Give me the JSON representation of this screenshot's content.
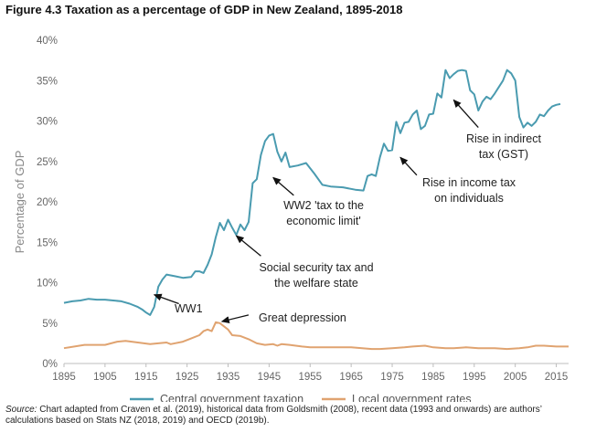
{
  "title": "Figure 4.3 Taxation as a percentage of GDP in New Zealand, 1895-2018",
  "source": {
    "label": "Source:",
    "text": " Chart adapted from Craven et al. (2019), historical data from Goldsmith (2008), recent data (1993 and onwards) are authors’ calculations based on Stats NZ (2018, 2019) and OECD (2019b)."
  },
  "chart_data": {
    "type": "line",
    "title": "Figure 4.3 Taxation as a percentage of GDP in New Zealand, 1895-2018",
    "xlabel": "",
    "ylabel": "Percentage of GDP",
    "xlim": [
      1895,
      2018
    ],
    "ylim": [
      0,
      40
    ],
    "x_ticks": [
      1895,
      1905,
      1915,
      1925,
      1935,
      1945,
      1955,
      1965,
      1975,
      1985,
      1995,
      2005,
      2015
    ],
    "y_ticks": [
      0,
      5,
      10,
      15,
      20,
      25,
      30,
      35,
      40
    ],
    "y_tick_labels": [
      "0%",
      "5%",
      "10%",
      "15%",
      "20%",
      "25%",
      "30%",
      "35%",
      "40%"
    ],
    "grid": false,
    "legend_position": "bottom",
    "series": [
      {
        "name": "Central government taxation",
        "color": "#4a9bb0",
        "points": [
          [
            1895,
            7.5
          ],
          [
            1897,
            7.7
          ],
          [
            1899,
            7.8
          ],
          [
            1901,
            8.0
          ],
          [
            1903,
            7.9
          ],
          [
            1905,
            7.9
          ],
          [
            1907,
            7.8
          ],
          [
            1909,
            7.7
          ],
          [
            1911,
            7.4
          ],
          [
            1913,
            7.0
          ],
          [
            1914,
            6.7
          ],
          [
            1915,
            6.3
          ],
          [
            1916,
            6.0
          ],
          [
            1917,
            7.0
          ],
          [
            1918,
            9.5
          ],
          [
            1919,
            10.4
          ],
          [
            1920,
            11.0
          ],
          [
            1922,
            10.8
          ],
          [
            1924,
            10.6
          ],
          [
            1926,
            10.7
          ],
          [
            1927,
            11.4
          ],
          [
            1928,
            11.4
          ],
          [
            1929,
            11.2
          ],
          [
            1930,
            12.2
          ],
          [
            1931,
            13.5
          ],
          [
            1932,
            15.6
          ],
          [
            1933,
            17.4
          ],
          [
            1934,
            16.5
          ],
          [
            1935,
            17.8
          ],
          [
            1936,
            16.8
          ],
          [
            1937,
            15.9
          ],
          [
            1938,
            17.2
          ],
          [
            1939,
            16.5
          ],
          [
            1940,
            17.5
          ],
          [
            1941,
            22.3
          ],
          [
            1942,
            22.8
          ],
          [
            1943,
            25.8
          ],
          [
            1944,
            27.5
          ],
          [
            1945,
            28.2
          ],
          [
            1946,
            28.4
          ],
          [
            1947,
            26.2
          ],
          [
            1948,
            25.0
          ],
          [
            1949,
            26.1
          ],
          [
            1950,
            24.3
          ],
          [
            1952,
            24.5
          ],
          [
            1954,
            24.8
          ],
          [
            1956,
            23.5
          ],
          [
            1958,
            22.1
          ],
          [
            1960,
            21.9
          ],
          [
            1963,
            21.8
          ],
          [
            1966,
            21.5
          ],
          [
            1968,
            21.4
          ],
          [
            1969,
            23.2
          ],
          [
            1970,
            23.4
          ],
          [
            1971,
            23.2
          ],
          [
            1972,
            25.5
          ],
          [
            1973,
            27.2
          ],
          [
            1974,
            26.3
          ],
          [
            1975,
            26.4
          ],
          [
            1976,
            29.9
          ],
          [
            1977,
            28.5
          ],
          [
            1978,
            29.8
          ],
          [
            1979,
            29.9
          ],
          [
            1980,
            30.8
          ],
          [
            1981,
            31.3
          ],
          [
            1982,
            29.0
          ],
          [
            1983,
            29.4
          ],
          [
            1984,
            30.8
          ],
          [
            1985,
            30.9
          ],
          [
            1986,
            33.4
          ],
          [
            1987,
            32.9
          ],
          [
            1988,
            36.3
          ],
          [
            1989,
            35.3
          ],
          [
            1990,
            35.8
          ],
          [
            1991,
            36.2
          ],
          [
            1992,
            36.3
          ],
          [
            1993,
            36.2
          ],
          [
            1994,
            33.8
          ],
          [
            1995,
            33.3
          ],
          [
            1996,
            31.3
          ],
          [
            1997,
            32.4
          ],
          [
            1998,
            33.0
          ],
          [
            1999,
            32.7
          ],
          [
            2000,
            33.4
          ],
          [
            2001,
            34.2
          ],
          [
            2002,
            35.0
          ],
          [
            2003,
            36.3
          ],
          [
            2004,
            35.9
          ],
          [
            2005,
            35.0
          ],
          [
            2006,
            30.5
          ],
          [
            2007,
            29.2
          ],
          [
            2008,
            29.8
          ],
          [
            2009,
            29.4
          ],
          [
            2010,
            29.9
          ],
          [
            2011,
            30.8
          ],
          [
            2012,
            30.6
          ],
          [
            2013,
            31.3
          ],
          [
            2014,
            31.8
          ],
          [
            2015,
            32.0
          ],
          [
            2016,
            32.1
          ]
        ]
      },
      {
        "name": "Local government rates",
        "color": "#e0a370",
        "points": [
          [
            1895,
            1.9
          ],
          [
            1900,
            2.3
          ],
          [
            1905,
            2.3
          ],
          [
            1908,
            2.7
          ],
          [
            1910,
            2.8
          ],
          [
            1913,
            2.6
          ],
          [
            1916,
            2.4
          ],
          [
            1918,
            2.5
          ],
          [
            1920,
            2.6
          ],
          [
            1921,
            2.4
          ],
          [
            1924,
            2.7
          ],
          [
            1926,
            3.1
          ],
          [
            1928,
            3.5
          ],
          [
            1929,
            4.0
          ],
          [
            1930,
            4.2
          ],
          [
            1931,
            4.0
          ],
          [
            1932,
            5.1
          ],
          [
            1933,
            5.0
          ],
          [
            1934,
            4.6
          ],
          [
            1935,
            4.2
          ],
          [
            1936,
            3.5
          ],
          [
            1938,
            3.4
          ],
          [
            1940,
            3.0
          ],
          [
            1942,
            2.5
          ],
          [
            1944,
            2.3
          ],
          [
            1946,
            2.4
          ],
          [
            1947,
            2.2
          ],
          [
            1948,
            2.4
          ],
          [
            1950,
            2.3
          ],
          [
            1953,
            2.1
          ],
          [
            1955,
            2.0
          ],
          [
            1960,
            2.0
          ],
          [
            1965,
            2.0
          ],
          [
            1970,
            1.8
          ],
          [
            1972,
            1.8
          ],
          [
            1975,
            1.9
          ],
          [
            1978,
            2.0
          ],
          [
            1980,
            2.1
          ],
          [
            1983,
            2.2
          ],
          [
            1985,
            2.0
          ],
          [
            1988,
            1.9
          ],
          [
            1990,
            1.9
          ],
          [
            1993,
            2.0
          ],
          [
            1996,
            1.9
          ],
          [
            2000,
            1.9
          ],
          [
            2003,
            1.8
          ],
          [
            2006,
            1.9
          ],
          [
            2008,
            2.0
          ],
          [
            2010,
            2.2
          ],
          [
            2012,
            2.2
          ],
          [
            2015,
            2.1
          ],
          [
            2018,
            2.1
          ]
        ]
      }
    ],
    "annotations": [
      {
        "lines": [
          "WW1"
        ],
        "tip": [
          1917,
          8.5
        ],
        "arrow_from": [
          1923,
          7.4
        ]
      },
      {
        "lines": [
          "Great depression"
        ],
        "tip": [
          1933.5,
          5.2
        ],
        "arrow_from": [
          1940,
          6.0
        ]
      },
      {
        "lines": [
          "Social security tax and",
          "the welfare state"
        ],
        "tip": [
          1937,
          15.8
        ],
        "arrow_from": [
          1943,
          13.3
        ]
      },
      {
        "lines": [
          "WW2 'tax to the",
          "economic limit'"
        ],
        "tip": [
          1946,
          23.0
        ],
        "arrow_from": [
          1951,
          20.8
        ]
      },
      {
        "lines": [
          "Rise in income tax",
          "on individuals"
        ],
        "tip": [
          1977,
          25.5
        ],
        "arrow_from": [
          1981,
          23.3
        ]
      },
      {
        "lines": [
          "Rise in indirect",
          "tax (GST)"
        ],
        "tip": [
          1990,
          32.6
        ],
        "arrow_from": [
          1996,
          29.2
        ]
      }
    ]
  }
}
